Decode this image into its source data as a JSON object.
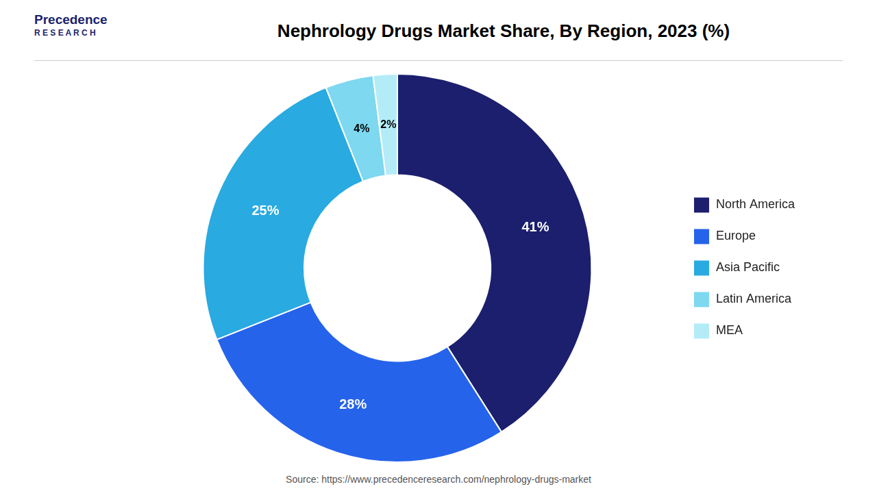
{
  "chart_data": {
    "type": "doughnut",
    "title": "Nephrology Drugs Market Share, By Region, 2023 (%)",
    "categories": [
      "North America",
      "Europe",
      "Asia Pacific",
      "Latin America",
      "MEA"
    ],
    "values": [
      41,
      28,
      25,
      4,
      2
    ],
    "value_labels": [
      "41%",
      "28%",
      "25%",
      "4%",
      "2%"
    ],
    "colors": [
      "#1b1f6e",
      "#2563eb",
      "#29aae1",
      "#7dd8f0",
      "#b3ecf7"
    ],
    "data_labels": true,
    "legend": "right",
    "annotations": [
      "Precedence",
      "R E S E A R C H",
      "Source: https://www.precedenceresearch.com/nephrology-drugs-market"
    ]
  }
}
